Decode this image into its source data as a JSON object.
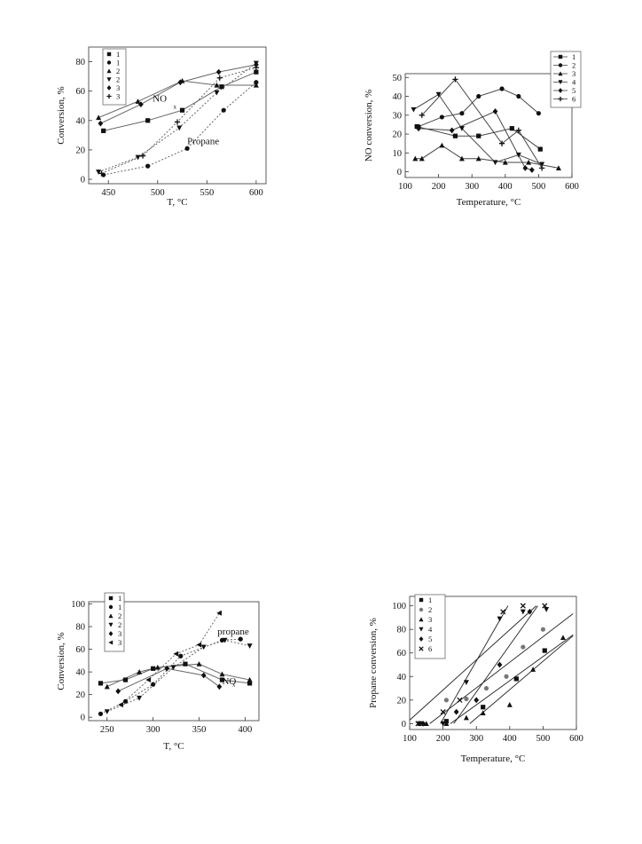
{
  "chart_data": [
    {
      "type": "scatter",
      "xlabel": "T, °C",
      "ylabel": "Conversion, %",
      "xlim": [
        430,
        610
      ],
      "ylim": [
        -3,
        90
      ],
      "xticks": [
        450,
        500,
        550,
        600
      ],
      "yticks": [
        0,
        20,
        40,
        60,
        80
      ],
      "legend_position": "top-left",
      "annotations": [
        {
          "text": "NO",
          "x": 495,
          "y": 53
        },
        {
          "text": "x",
          "x": 516,
          "y": 48
        },
        {
          "text": "Propane",
          "x": 530,
          "y": 24
        }
      ],
      "series": [
        {
          "name": "1",
          "marker": "square",
          "line": "solid",
          "x": [
            445,
            490,
            525,
            565,
            600
          ],
          "y": [
            33,
            40,
            47,
            63,
            73
          ]
        },
        {
          "name": "1",
          "marker": "circle",
          "line": "dotted",
          "x": [
            445,
            490,
            530,
            567,
            600
          ],
          "y": [
            3,
            9,
            21,
            47,
            66
          ]
        },
        {
          "name": "2",
          "marker": "triangle-up",
          "line": "solid",
          "x": [
            440,
            480,
            525,
            560,
            600
          ],
          "y": [
            42,
            53,
            67,
            64,
            64
          ]
        },
        {
          "name": "2",
          "marker": "triangle-down",
          "line": "dotted",
          "x": [
            440,
            480,
            522,
            560,
            600
          ],
          "y": [
            5,
            15,
            35,
            59,
            79
          ]
        },
        {
          "name": "3",
          "marker": "diamond",
          "line": "solid",
          "x": [
            442,
            483,
            523,
            562,
            600
          ],
          "y": [
            38,
            51,
            66,
            73,
            78
          ]
        },
        {
          "name": "3",
          "marker": "plus",
          "line": "dotted",
          "x": [
            443,
            485,
            520,
            563,
            600
          ],
          "y": [
            4,
            16,
            39,
            69,
            76
          ]
        }
      ]
    },
    {
      "type": "line",
      "xlabel": "Temperature, °C",
      "ylabel": "NO conversion, %",
      "xlim": [
        100,
        600
      ],
      "ylim": [
        -3,
        52
      ],
      "xticks": [
        100,
        200,
        300,
        400,
        500,
        600
      ],
      "yticks": [
        0,
        10,
        20,
        30,
        40,
        50
      ],
      "legend_position": "top-right",
      "series": [
        {
          "name": "1",
          "marker": "square",
          "x": [
            135,
            250,
            320,
            420,
            505
          ],
          "y": [
            24,
            19,
            19,
            23,
            12
          ]
        },
        {
          "name": "2",
          "marker": "circle",
          "x": [
            140,
            210,
            270,
            320,
            390,
            440,
            500
          ],
          "y": [
            24,
            29,
            31,
            40,
            44,
            40,
            31
          ]
        },
        {
          "name": "3",
          "marker": "triangle-up",
          "x": [
            130,
            150,
            210,
            270,
            320,
            400,
            470,
            560
          ],
          "y": [
            7,
            7,
            14,
            7,
            7,
            5,
            5,
            2
          ]
        },
        {
          "name": "4",
          "marker": "triangle-down",
          "x": [
            125,
            200,
            270,
            370,
            440,
            510
          ],
          "y": [
            33,
            41,
            23,
            5,
            9,
            4
          ]
        },
        {
          "name": "5",
          "marker": "diamond",
          "x": [
            140,
            240,
            370,
            460,
            480
          ],
          "y": [
            23,
            22,
            32,
            2,
            1
          ]
        },
        {
          "name": "6",
          "marker": "plus",
          "x": [
            150,
            250,
            390,
            440,
            510
          ],
          "y": [
            30,
            49,
            15,
            22,
            2
          ]
        }
      ]
    },
    {
      "type": "scatter",
      "xlabel": "T, °C",
      "ylabel": "Conversion, %",
      "xlim": [
        230,
        415
      ],
      "ylim": [
        -3,
        102
      ],
      "xticks": [
        250,
        300,
        350,
        400
      ],
      "yticks": [
        0,
        20,
        40,
        60,
        80,
        100
      ],
      "legend_position": "top-left",
      "annotations": [
        {
          "text": "propane",
          "x": 370,
          "y": 73
        },
        {
          "text": "NO",
          "x": 375,
          "y": 29
        },
        {
          "text": "x",
          "x": 386,
          "y": 27
        }
      ],
      "series": [
        {
          "name": "1",
          "marker": "square",
          "line": "solid",
          "x": [
            243,
            270,
            300,
            335,
            375,
            405
          ],
          "y": [
            30,
            33,
            43,
            47,
            33,
            30
          ]
        },
        {
          "name": "1",
          "marker": "circle",
          "line": "dotted",
          "x": [
            243,
            270,
            300,
            330,
            375,
            395
          ],
          "y": [
            3,
            14,
            29,
            54,
            68,
            69
          ]
        },
        {
          "name": "2",
          "marker": "triangle-up",
          "line": "solid",
          "x": [
            250,
            285,
            305,
            350,
            375,
            405
          ],
          "y": [
            27,
            40,
            44,
            47,
            38,
            33
          ]
        },
        {
          "name": "2",
          "marker": "triangle-down",
          "line": "dotted",
          "x": [
            250,
            285,
            322,
            355,
            378,
            405
          ],
          "y": [
            5,
            17,
            44,
            62,
            68,
            63
          ]
        },
        {
          "name": "3",
          "marker": "diamond",
          "line": "solid",
          "x": [
            262,
            315,
            355,
            372
          ],
          "y": [
            23,
            43,
            37,
            27
          ]
        },
        {
          "name": "3",
          "marker": "triangle-left",
          "line": "dotted",
          "x": [
            265,
            295,
            325,
            350,
            372
          ],
          "y": [
            11,
            33,
            56,
            64,
            92
          ]
        }
      ]
    },
    {
      "type": "scatter",
      "xlabel": "Temperature, °C",
      "ylabel": "Propane conversion, %",
      "xlim": [
        100,
        600
      ],
      "ylim": [
        -5,
        108
      ],
      "xticks": [
        100,
        200,
        300,
        400,
        500,
        600
      ],
      "yticks": [
        0,
        20,
        40,
        60,
        80,
        100
      ],
      "legend_position": "top-left",
      "series": [
        {
          "name": "1",
          "marker": "square",
          "x": [
            130,
            210,
            320,
            420,
            505
          ],
          "y": [
            0,
            2,
            14,
            38,
            62
          ]
        },
        {
          "name": "2",
          "marker": "circle",
          "x": [
            140,
            210,
            270,
            330,
            390,
            440,
            500
          ],
          "y": [
            0,
            20,
            21,
            30,
            40,
            65,
            80
          ]
        },
        {
          "name": "3",
          "marker": "triangle-up",
          "x": [
            150,
            210,
            270,
            320,
            400,
            470,
            560
          ],
          "y": [
            0,
            0,
            5,
            9,
            16,
            46,
            73
          ]
        },
        {
          "name": "4",
          "marker": "triangle-down",
          "x": [
            130,
            200,
            270,
            370,
            440,
            510
          ],
          "y": [
            0,
            0,
            35,
            89,
            95,
            97
          ]
        },
        {
          "name": "5",
          "marker": "diamond",
          "x": [
            140,
            240,
            300,
            370,
            460
          ],
          "y": [
            0,
            10,
            20,
            50,
            95
          ]
        },
        {
          "name": "6",
          "marker": "cross",
          "x": [
            125,
            200,
            250,
            380,
            440,
            505
          ],
          "y": [
            0,
            10,
            20,
            95,
            100,
            100
          ]
        }
      ]
    }
  ]
}
